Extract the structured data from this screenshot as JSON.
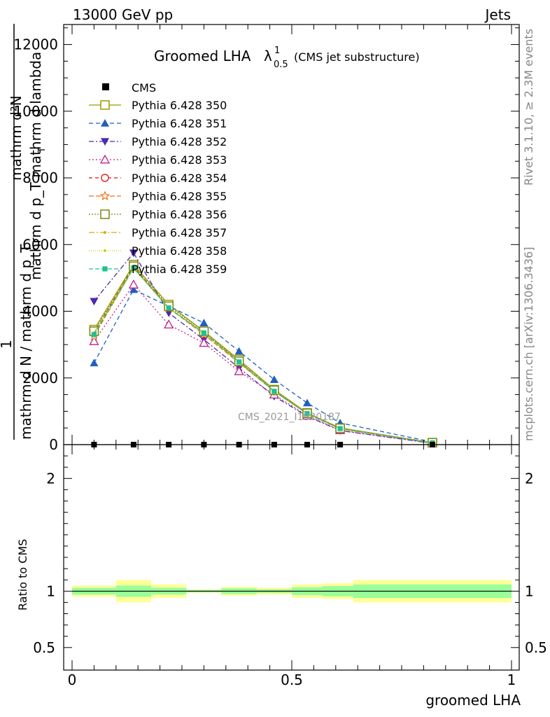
{
  "header": {
    "energy_label": "13000 GeV pp",
    "category_label": "Jets"
  },
  "side_labels": {
    "rivet": "Rivet 3.1.10, ≥ 2.3M events",
    "mcplots": "mcplots.cern.ch [arXiv:1306.3436]"
  },
  "watermark": "CMS_2021_I1920187",
  "chart_data": [
    {
      "type": "line",
      "title": "Groomed LHA",
      "title_symbol": "λ",
      "title_sup": "1",
      "title_sub": "0.5",
      "title_note": "(CMS jet substructure)",
      "ylabel_lines": [
        "mathrm d²N",
        "mathrm d p_T mathrm d lambda",
        "1",
        "mathrm d N / mathrm d p_T"
      ],
      "ylabel_subscript": "T",
      "ylim": [
        0,
        12600
      ],
      "yticks": [
        0,
        2000,
        4000,
        6000,
        8000,
        10000,
        12000
      ],
      "ytick_labels": [
        "0",
        "2000",
        "4000",
        "6000",
        "8000",
        "10000",
        "12000"
      ],
      "xlim": [
        -0.02,
        1.02
      ],
      "legend_position": "top-left",
      "x": [
        0.05,
        0.14,
        0.22,
        0.3,
        0.38,
        0.46,
        0.535,
        0.61,
        0.82
      ],
      "reference": {
        "name": "CMS",
        "values": [
          0,
          0,
          0,
          0,
          0,
          0,
          0,
          0,
          0
        ]
      },
      "series": [
        {
          "name": "Pythia 6.428 350",
          "color": "#9a9a00",
          "marker": "open-square",
          "dash": "",
          "values": [
            3450,
            5400,
            4200,
            3400,
            2550,
            1650,
            950,
            500,
            60
          ]
        },
        {
          "name": "Pythia 6.428 351",
          "color": "#1f5fbf",
          "marker": "filled-triangle-up",
          "dash": "6 4",
          "values": [
            2450,
            4650,
            4150,
            3650,
            2800,
            1950,
            1250,
            650,
            80
          ]
        },
        {
          "name": "Pythia 6.428 352",
          "color": "#4a2ab0",
          "marker": "filled-triangle-down",
          "dash": "7 3 2 3",
          "values": [
            4300,
            5750,
            3950,
            3150,
            2300,
            1450,
            850,
            420,
            40
          ]
        },
        {
          "name": "Pythia 6.428 353",
          "color": "#c0208a",
          "marker": "open-triangle-up",
          "dash": "2 3",
          "values": [
            3100,
            4800,
            3600,
            3050,
            2200,
            1500,
            870,
            430,
            45
          ]
        },
        {
          "name": "Pythia 6.428 354",
          "color": "#e01010",
          "marker": "open-circle",
          "dash": "5 4",
          "values": [
            3350,
            5350,
            4100,
            3350,
            2500,
            1600,
            930,
            480,
            55
          ]
        },
        {
          "name": "Pythia 6.428 355",
          "color": "#f07010",
          "marker": "open-star",
          "dash": "7 3",
          "values": [
            3250,
            5300,
            4100,
            3300,
            2450,
            1600,
            920,
            470,
            55
          ]
        },
        {
          "name": "Pythia 6.428 356",
          "color": "#7a8a10",
          "marker": "open-square",
          "dash": "2 2",
          "values": [
            3400,
            5350,
            4150,
            3400,
            2500,
            1630,
            940,
            490,
            58
          ]
        },
        {
          "name": "Pythia 6.428 357",
          "color": "#d4b000",
          "marker": "small-dot",
          "dash": "8 3 2 3",
          "values": [
            3350,
            5300,
            4100,
            3350,
            2480,
            1600,
            930,
            480,
            55
          ]
        },
        {
          "name": "Pythia 6.428 358",
          "color": "#b8d810",
          "marker": "small-dot",
          "dash": "1 2",
          "values": [
            3300,
            5280,
            4080,
            3320,
            2460,
            1590,
            920,
            475,
            55
          ]
        },
        {
          "name": "Pythia 6.428 359",
          "color": "#20c090",
          "marker": "filled-square",
          "dash": "6 3",
          "values": [
            3300,
            5300,
            4100,
            3350,
            2480,
            1600,
            930,
            480,
            55
          ]
        }
      ]
    },
    {
      "type": "area",
      "ylabel": "Ratio to CMS",
      "xlabel": "groomed LHA",
      "ylim": [
        0.3,
        2.3
      ],
      "yticks": [
        0.5,
        1,
        2
      ],
      "ytick_labels": [
        "0.5",
        "1",
        "2"
      ],
      "xticks": [
        0,
        0.5,
        1
      ],
      "xtick_labels": [
        "0",
        "0.5",
        "1"
      ],
      "reference_line": 1,
      "band_colors": {
        "outer": "#ffff99",
        "inner": "#99ff99"
      },
      "bins": [
        {
          "x0": 0.0,
          "x1": 0.1,
          "outer": [
            0.95,
            1.05
          ],
          "inner": [
            0.97,
            1.03
          ]
        },
        {
          "x0": 0.1,
          "x1": 0.18,
          "outer": [
            0.9,
            1.1
          ],
          "inner": [
            0.95,
            1.05
          ]
        },
        {
          "x0": 0.18,
          "x1": 0.26,
          "outer": [
            0.94,
            1.06
          ],
          "inner": [
            0.97,
            1.03
          ]
        },
        {
          "x0": 0.26,
          "x1": 0.34,
          "outer": [
            0.985,
            1.015
          ],
          "inner": [
            0.99,
            1.01
          ]
        },
        {
          "x0": 0.34,
          "x1": 0.42,
          "outer": [
            0.96,
            1.04
          ],
          "inner": [
            0.975,
            1.025
          ]
        },
        {
          "x0": 0.42,
          "x1": 0.5,
          "outer": [
            0.97,
            1.03
          ],
          "inner": [
            0.985,
            1.015
          ]
        },
        {
          "x0": 0.5,
          "x1": 0.57,
          "outer": [
            0.94,
            1.06
          ],
          "inner": [
            0.965,
            1.035
          ]
        },
        {
          "x0": 0.57,
          "x1": 0.64,
          "outer": [
            0.93,
            1.07
          ],
          "inner": [
            0.955,
            1.045
          ]
        },
        {
          "x0": 0.64,
          "x1": 1.0,
          "outer": [
            0.9,
            1.1
          ],
          "inner": [
            0.94,
            1.06
          ]
        }
      ]
    }
  ]
}
